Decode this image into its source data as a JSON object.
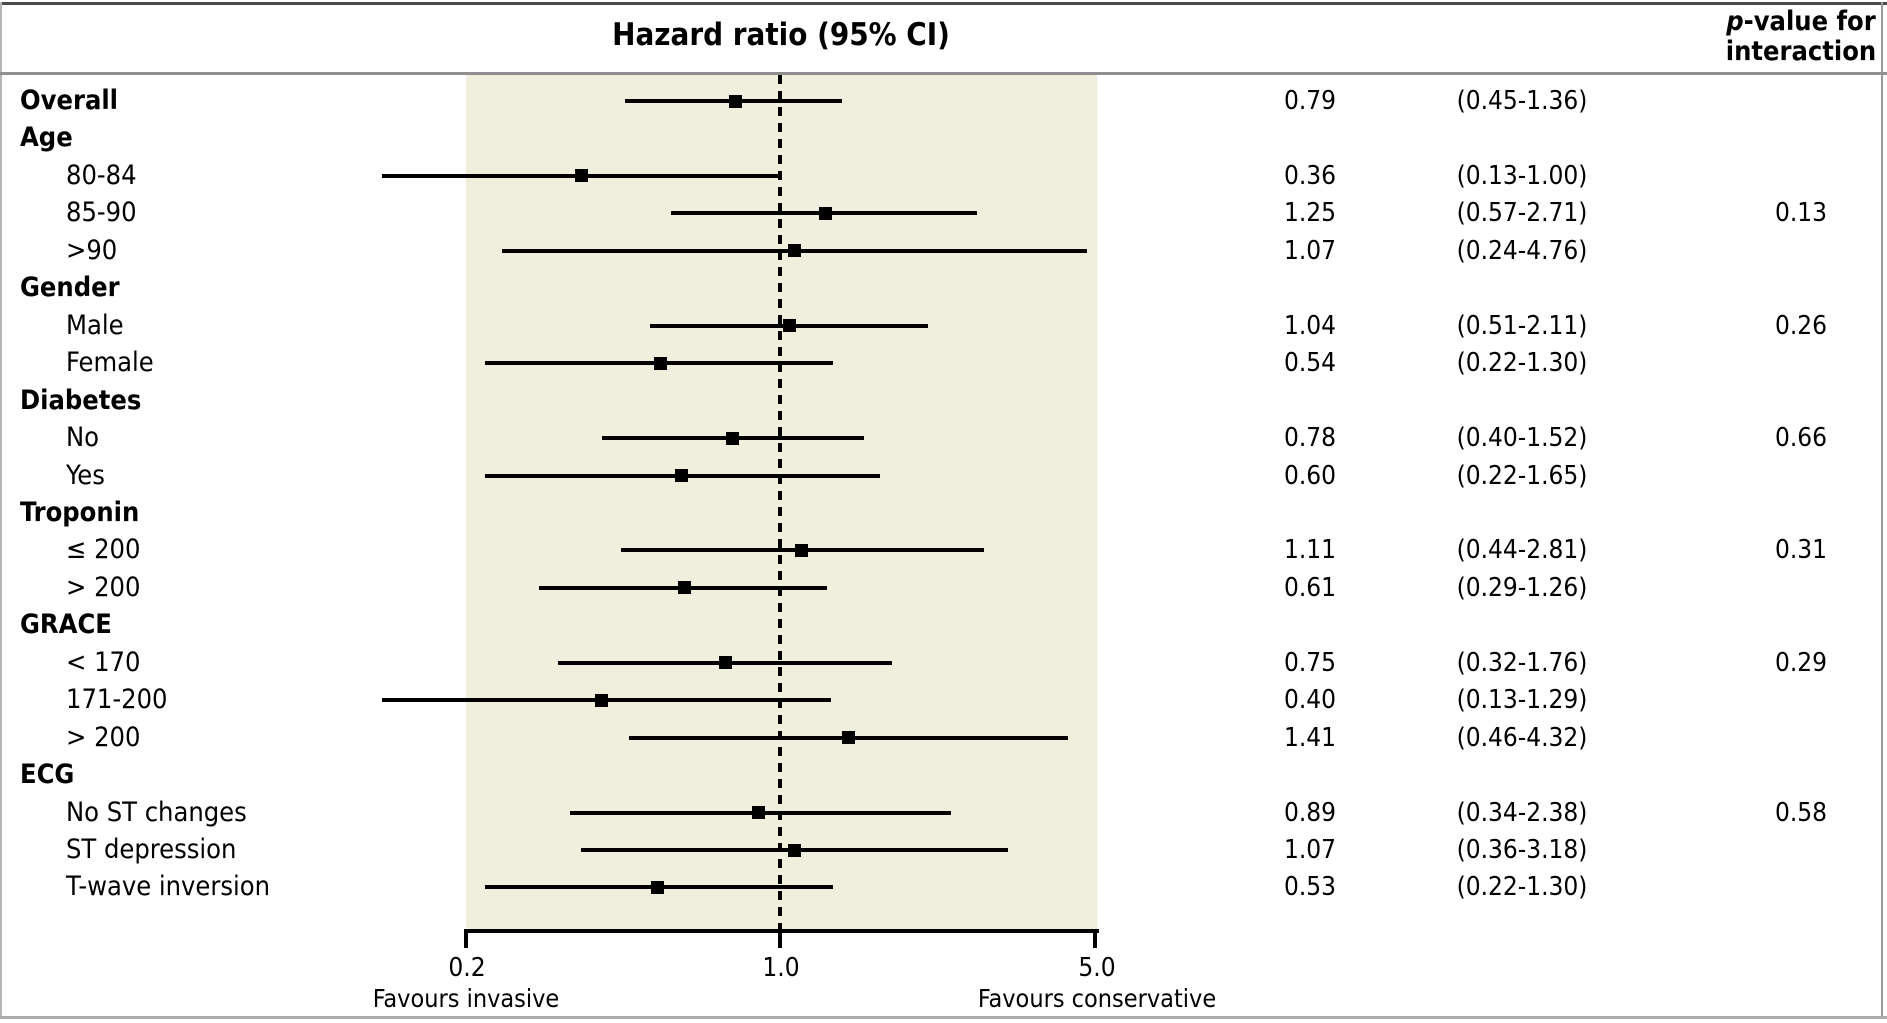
{
  "header": {
    "title": "Hazard ratio (95% CI)",
    "p_col_line1_italic": "p",
    "p_col_line1_rest": "-value for",
    "p_col_line2": "interaction"
  },
  "colors": {
    "band": "#f0eedc",
    "ink": "#000000",
    "frame_dark": "#4a4a4a",
    "frame_light": "#ababab"
  },
  "chart_data": {
    "type": "forest",
    "title": "Hazard ratio (95% CI)",
    "x_scale": "log",
    "xlim": [
      0.2,
      5.0
    ],
    "x_ticks": [
      0.2,
      1.0,
      5.0
    ],
    "x_tick_labels": [
      "0.2",
      "1.0",
      "5.0"
    ],
    "reference_line": 1.0,
    "x_axis_annotations": {
      "left": "Favours invasive",
      "right": "Favours conservative"
    },
    "rows": [
      {
        "label": "Overall",
        "group_header": false,
        "bold": true,
        "hr": 0.79,
        "ci_low": 0.45,
        "ci_high": 1.36,
        "hr_text": "0.79",
        "ci_text": "(0.45-1.36)",
        "p_text": ""
      },
      {
        "label": "Age",
        "group_header": true
      },
      {
        "label": "80-84",
        "group_header": false,
        "hr": 0.36,
        "ci_low": 0.13,
        "ci_high": 1.0,
        "hr_text": "0.36",
        "ci_text": "(0.13-1.00)",
        "p_text": ""
      },
      {
        "label": "85-90",
        "group_header": false,
        "hr": 1.25,
        "ci_low": 0.57,
        "ci_high": 2.71,
        "hr_text": "1.25",
        "ci_text": "(0.57-2.71)",
        "p_text": "0.13"
      },
      {
        "label": ">90",
        "group_header": false,
        "hr": 1.07,
        "ci_low": 0.24,
        "ci_high": 4.76,
        "hr_text": "1.07",
        "ci_text": "(0.24-4.76)",
        "p_text": ""
      },
      {
        "label": "Gender",
        "group_header": true
      },
      {
        "label": "Male",
        "group_header": false,
        "hr": 1.04,
        "ci_low": 0.51,
        "ci_high": 2.11,
        "hr_text": "1.04",
        "ci_text": "(0.51-2.11)",
        "p_text": "0.26"
      },
      {
        "label": "Female",
        "group_header": false,
        "hr": 0.54,
        "ci_low": 0.22,
        "ci_high": 1.3,
        "hr_text": "0.54",
        "ci_text": "(0.22-1.30)",
        "p_text": ""
      },
      {
        "label": "Diabetes",
        "group_header": true
      },
      {
        "label": "No",
        "group_header": false,
        "hr": 0.78,
        "ci_low": 0.4,
        "ci_high": 1.52,
        "hr_text": "0.78",
        "ci_text": "(0.40-1.52)",
        "p_text": "0.66"
      },
      {
        "label": "Yes",
        "group_header": false,
        "hr": 0.6,
        "ci_low": 0.22,
        "ci_high": 1.65,
        "hr_text": "0.60",
        "ci_text": "(0.22-1.65)",
        "p_text": ""
      },
      {
        "label": "Troponin",
        "group_header": true
      },
      {
        "label": "≤ 200",
        "group_header": false,
        "hr": 1.11,
        "ci_low": 0.44,
        "ci_high": 2.81,
        "hr_text": "1.11",
        "ci_text": "(0.44-2.81)",
        "p_text": "0.31"
      },
      {
        "label": "> 200",
        "group_header": false,
        "hr": 0.61,
        "ci_low": 0.29,
        "ci_high": 1.26,
        "hr_text": "0.61",
        "ci_text": "(0.29-1.26)",
        "p_text": ""
      },
      {
        "label": "GRACE",
        "group_header": true
      },
      {
        "label": "< 170",
        "group_header": false,
        "hr": 0.75,
        "ci_low": 0.32,
        "ci_high": 1.76,
        "hr_text": "0.75",
        "ci_text": "(0.32-1.76)",
        "p_text": "0.29"
      },
      {
        "label": "171-200",
        "group_header": false,
        "hr": 0.4,
        "ci_low": 0.13,
        "ci_high": 1.29,
        "hr_text": "0.40",
        "ci_text": "(0.13-1.29)",
        "p_text": ""
      },
      {
        "label": "> 200",
        "group_header": false,
        "hr": 1.41,
        "ci_low": 0.46,
        "ci_high": 4.32,
        "hr_text": "1.41",
        "ci_text": "(0.46-4.32)",
        "p_text": ""
      },
      {
        "label": "ECG",
        "group_header": true
      },
      {
        "label": "No ST changes",
        "group_header": false,
        "hr": 0.89,
        "ci_low": 0.34,
        "ci_high": 2.38,
        "hr_text": "0.89",
        "ci_text": "(0.34-2.38)",
        "p_text": "0.58"
      },
      {
        "label": "ST depression",
        "group_header": false,
        "hr": 1.07,
        "ci_low": 0.36,
        "ci_high": 3.18,
        "hr_text": "1.07",
        "ci_text": "(0.36-3.18)",
        "p_text": ""
      },
      {
        "label": "T-wave inversion",
        "group_header": false,
        "hr": 0.53,
        "ci_low": 0.22,
        "ci_high": 1.3,
        "hr_text": "0.53",
        "ci_text": "(0.22-1.30)",
        "p_text": ""
      }
    ]
  }
}
